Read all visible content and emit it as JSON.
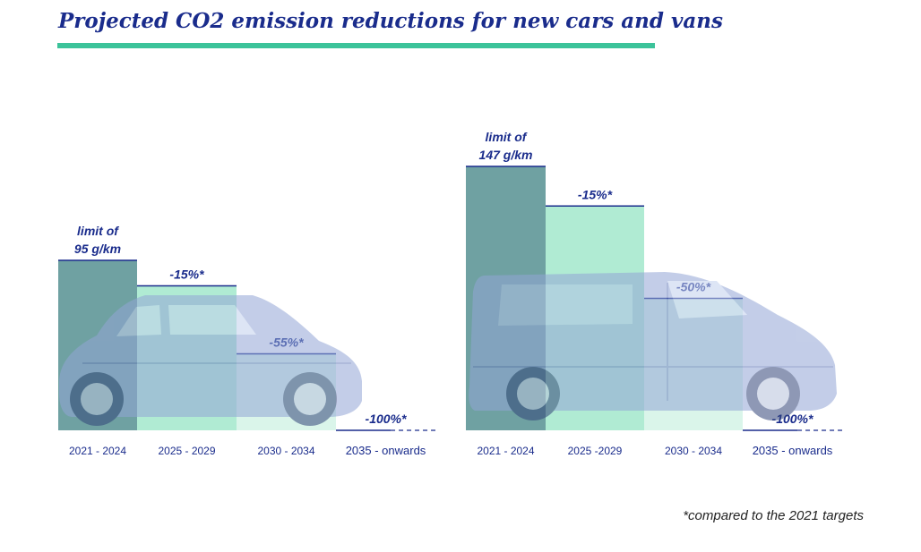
{
  "title": "Projected CO2 emission reductions for new cars and vans",
  "footnote": "*compared to the 2021 targets",
  "colors": {
    "title": "#1a2c8c",
    "rule": "#3cc39a",
    "bar_2021": "#4f8c8e",
    "bar_2025": "#8fe3c0",
    "bar_2030": "#ccf1e2",
    "label": "#1a2c8c",
    "tick": "#1a2c8c"
  },
  "chart_data": [
    {
      "type": "bar",
      "categories": [
        "2021 - 2024",
        "2025 - 2029",
        "2030 - 2034",
        "2035 - onwards"
      ],
      "values": [
        100,
        85,
        45,
        0
      ],
      "labels": [
        "limit of\n95 g/km",
        "-15%*",
        "-55%*",
        "-100%*"
      ],
      "illustration": "car-icon",
      "ylim": [
        0,
        100
      ]
    },
    {
      "type": "bar",
      "categories": [
        "2021 - 2024",
        "2025 -2029",
        "2030 - 2034",
        "2035 - onwards"
      ],
      "values": [
        100,
        85,
        50,
        0
      ],
      "labels": [
        "limit of\n147 g/km",
        "-15%*",
        "-50%*",
        "-100%*"
      ],
      "illustration": "van-icon",
      "ylim": [
        0,
        100
      ]
    }
  ]
}
